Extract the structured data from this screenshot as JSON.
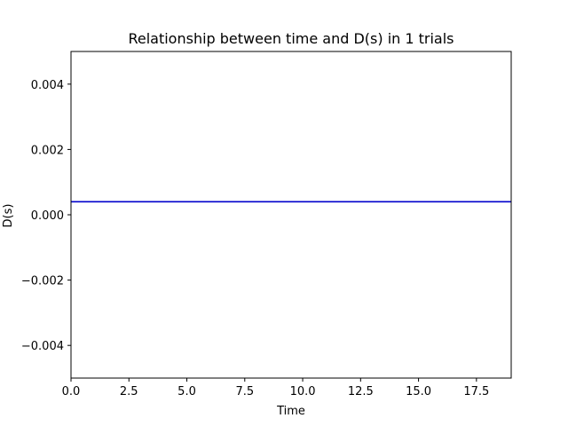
{
  "chart_data": {
    "type": "line",
    "title": "Relationship between time and D(s) in 1 trials",
    "xlabel": "Time",
    "ylabel": "D(s)",
    "xlim": [
      0,
      19
    ],
    "ylim": [
      -0.005,
      0.005
    ],
    "x_ticks": [
      0.0,
      2.5,
      5.0,
      7.5,
      10.0,
      12.5,
      15.0,
      17.5
    ],
    "x_tick_labels": [
      "0.0",
      "2.5",
      "5.0",
      "7.5",
      "10.0",
      "12.5",
      "15.0",
      "17.5"
    ],
    "y_ticks": [
      -0.004,
      -0.002,
      0.0,
      0.002,
      0.004
    ],
    "y_tick_labels": [
      "−0.004",
      "−0.002",
      "0.000",
      "0.002",
      "0.004"
    ],
    "grid": false,
    "legend": "none",
    "series": [
      {
        "color": "#0000cc",
        "x": [
          0,
          19
        ],
        "y": [
          0.0004,
          0.0004
        ]
      }
    ]
  }
}
